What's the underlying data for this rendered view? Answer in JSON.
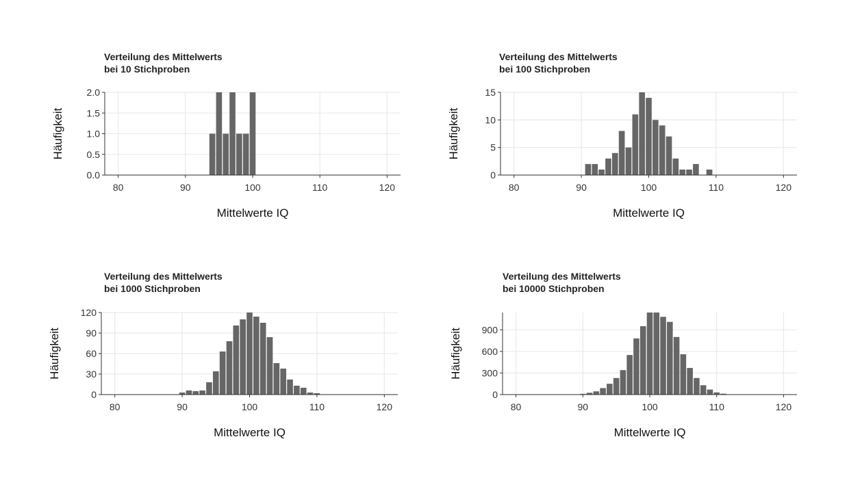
{
  "chart_data": [
    {
      "type": "bar",
      "title": [
        "Verteilung des Mittelwerts",
        "bei 10 Stichproben"
      ],
      "xlabel": "Mittelwerte IQ",
      "ylabel": "Häufigkeit",
      "xlim": [
        78,
        122
      ],
      "ylim": [
        0,
        2
      ],
      "xticks": [
        80,
        90,
        100,
        110,
        120
      ],
      "yticks": [
        "0.0",
        "0.5",
        "1.0",
        "1.5",
        "2.0"
      ],
      "grid": true,
      "bar_color": "#666666",
      "bin_width": 1,
      "bins": [
        {
          "x": 94,
          "count": 1
        },
        {
          "x": 95,
          "count": 2
        },
        {
          "x": 96,
          "count": 1
        },
        {
          "x": 97,
          "count": 2
        },
        {
          "x": 98,
          "count": 1
        },
        {
          "x": 99,
          "count": 1
        },
        {
          "x": 100,
          "count": 2
        }
      ]
    },
    {
      "type": "bar",
      "title": [
        "Verteilung des Mittelwerts",
        "bei 100 Stichproben"
      ],
      "xlabel": "Mittelwerte IQ",
      "ylabel": "Häufigkeit",
      "xlim": [
        78,
        122
      ],
      "ylim": [
        0,
        15
      ],
      "xticks": [
        80,
        90,
        100,
        110,
        120
      ],
      "yticks": [
        "0",
        "5",
        "10",
        "15"
      ],
      "grid": true,
      "bar_color": "#666666",
      "bin_width": 1,
      "bins": [
        {
          "x": 91,
          "count": 2
        },
        {
          "x": 92,
          "count": 2
        },
        {
          "x": 93,
          "count": 1
        },
        {
          "x": 94,
          "count": 3
        },
        {
          "x": 95,
          "count": 4
        },
        {
          "x": 96,
          "count": 8
        },
        {
          "x": 97,
          "count": 5
        },
        {
          "x": 98,
          "count": 11
        },
        {
          "x": 99,
          "count": 15
        },
        {
          "x": 100,
          "count": 14
        },
        {
          "x": 101,
          "count": 10
        },
        {
          "x": 102,
          "count": 9
        },
        {
          "x": 103,
          "count": 7
        },
        {
          "x": 104,
          "count": 3
        },
        {
          "x": 105,
          "count": 1
        },
        {
          "x": 106,
          "count": 1
        },
        {
          "x": 107,
          "count": 2
        },
        {
          "x": 109,
          "count": 1
        }
      ]
    },
    {
      "type": "bar",
      "title": [
        "Verteilung des Mittelwerts",
        "bei 1000 Stichproben"
      ],
      "xlabel": "Mittelwerte IQ",
      "ylabel": "Häufigkeit",
      "xlim": [
        78,
        122
      ],
      "ylim": [
        0,
        120
      ],
      "xticks": [
        80,
        90,
        100,
        110,
        120
      ],
      "yticks": [
        "0",
        "30",
        "60",
        "90",
        "120"
      ],
      "grid": true,
      "bar_color": "#666666",
      "bin_width": 1,
      "bins": [
        {
          "x": 90,
          "count": 3
        },
        {
          "x": 91,
          "count": 6
        },
        {
          "x": 92,
          "count": 5
        },
        {
          "x": 93,
          "count": 6
        },
        {
          "x": 94,
          "count": 18
        },
        {
          "x": 95,
          "count": 34
        },
        {
          "x": 96,
          "count": 63
        },
        {
          "x": 97,
          "count": 78
        },
        {
          "x": 98,
          "count": 101
        },
        {
          "x": 99,
          "count": 110
        },
        {
          "x": 100,
          "count": 120
        },
        {
          "x": 101,
          "count": 114
        },
        {
          "x": 102,
          "count": 105
        },
        {
          "x": 103,
          "count": 84
        },
        {
          "x": 104,
          "count": 46
        },
        {
          "x": 105,
          "count": 38
        },
        {
          "x": 106,
          "count": 22
        },
        {
          "x": 107,
          "count": 13
        },
        {
          "x": 108,
          "count": 10
        },
        {
          "x": 109,
          "count": 3
        },
        {
          "x": 110,
          "count": 2
        }
      ]
    },
    {
      "type": "bar",
      "title": [
        "Verteilung des Mittelwerts",
        "bei 10000 Stichproben"
      ],
      "xlabel": "Mittelwerte IQ",
      "ylabel": "Häufigkeit",
      "xlim": [
        78,
        122
      ],
      "ylim": [
        0,
        1140
      ],
      "xticks": [
        80,
        90,
        100,
        110,
        120
      ],
      "yticks": [
        "0",
        "300",
        "600",
        "900"
      ],
      "ytick_values": [
        0,
        300,
        600,
        900
      ],
      "grid": true,
      "bar_color": "#666666",
      "bin_width": 1,
      "bins": [
        {
          "x": 90,
          "count": 10
        },
        {
          "x": 91,
          "count": 25
        },
        {
          "x": 92,
          "count": 45
        },
        {
          "x": 93,
          "count": 90
        },
        {
          "x": 94,
          "count": 150
        },
        {
          "x": 95,
          "count": 230
        },
        {
          "x": 96,
          "count": 340
        },
        {
          "x": 97,
          "count": 550
        },
        {
          "x": 98,
          "count": 780
        },
        {
          "x": 99,
          "count": 950
        },
        {
          "x": 100,
          "count": 1140
        },
        {
          "x": 101,
          "count": 1140
        },
        {
          "x": 102,
          "count": 1080
        },
        {
          "x": 103,
          "count": 1010
        },
        {
          "x": 104,
          "count": 800
        },
        {
          "x": 105,
          "count": 560
        },
        {
          "x": 106,
          "count": 370
        },
        {
          "x": 107,
          "count": 230
        },
        {
          "x": 108,
          "count": 130
        },
        {
          "x": 109,
          "count": 70
        },
        {
          "x": 110,
          "count": 30
        },
        {
          "x": 111,
          "count": 12
        },
        {
          "x": 112,
          "count": 5
        }
      ]
    }
  ]
}
